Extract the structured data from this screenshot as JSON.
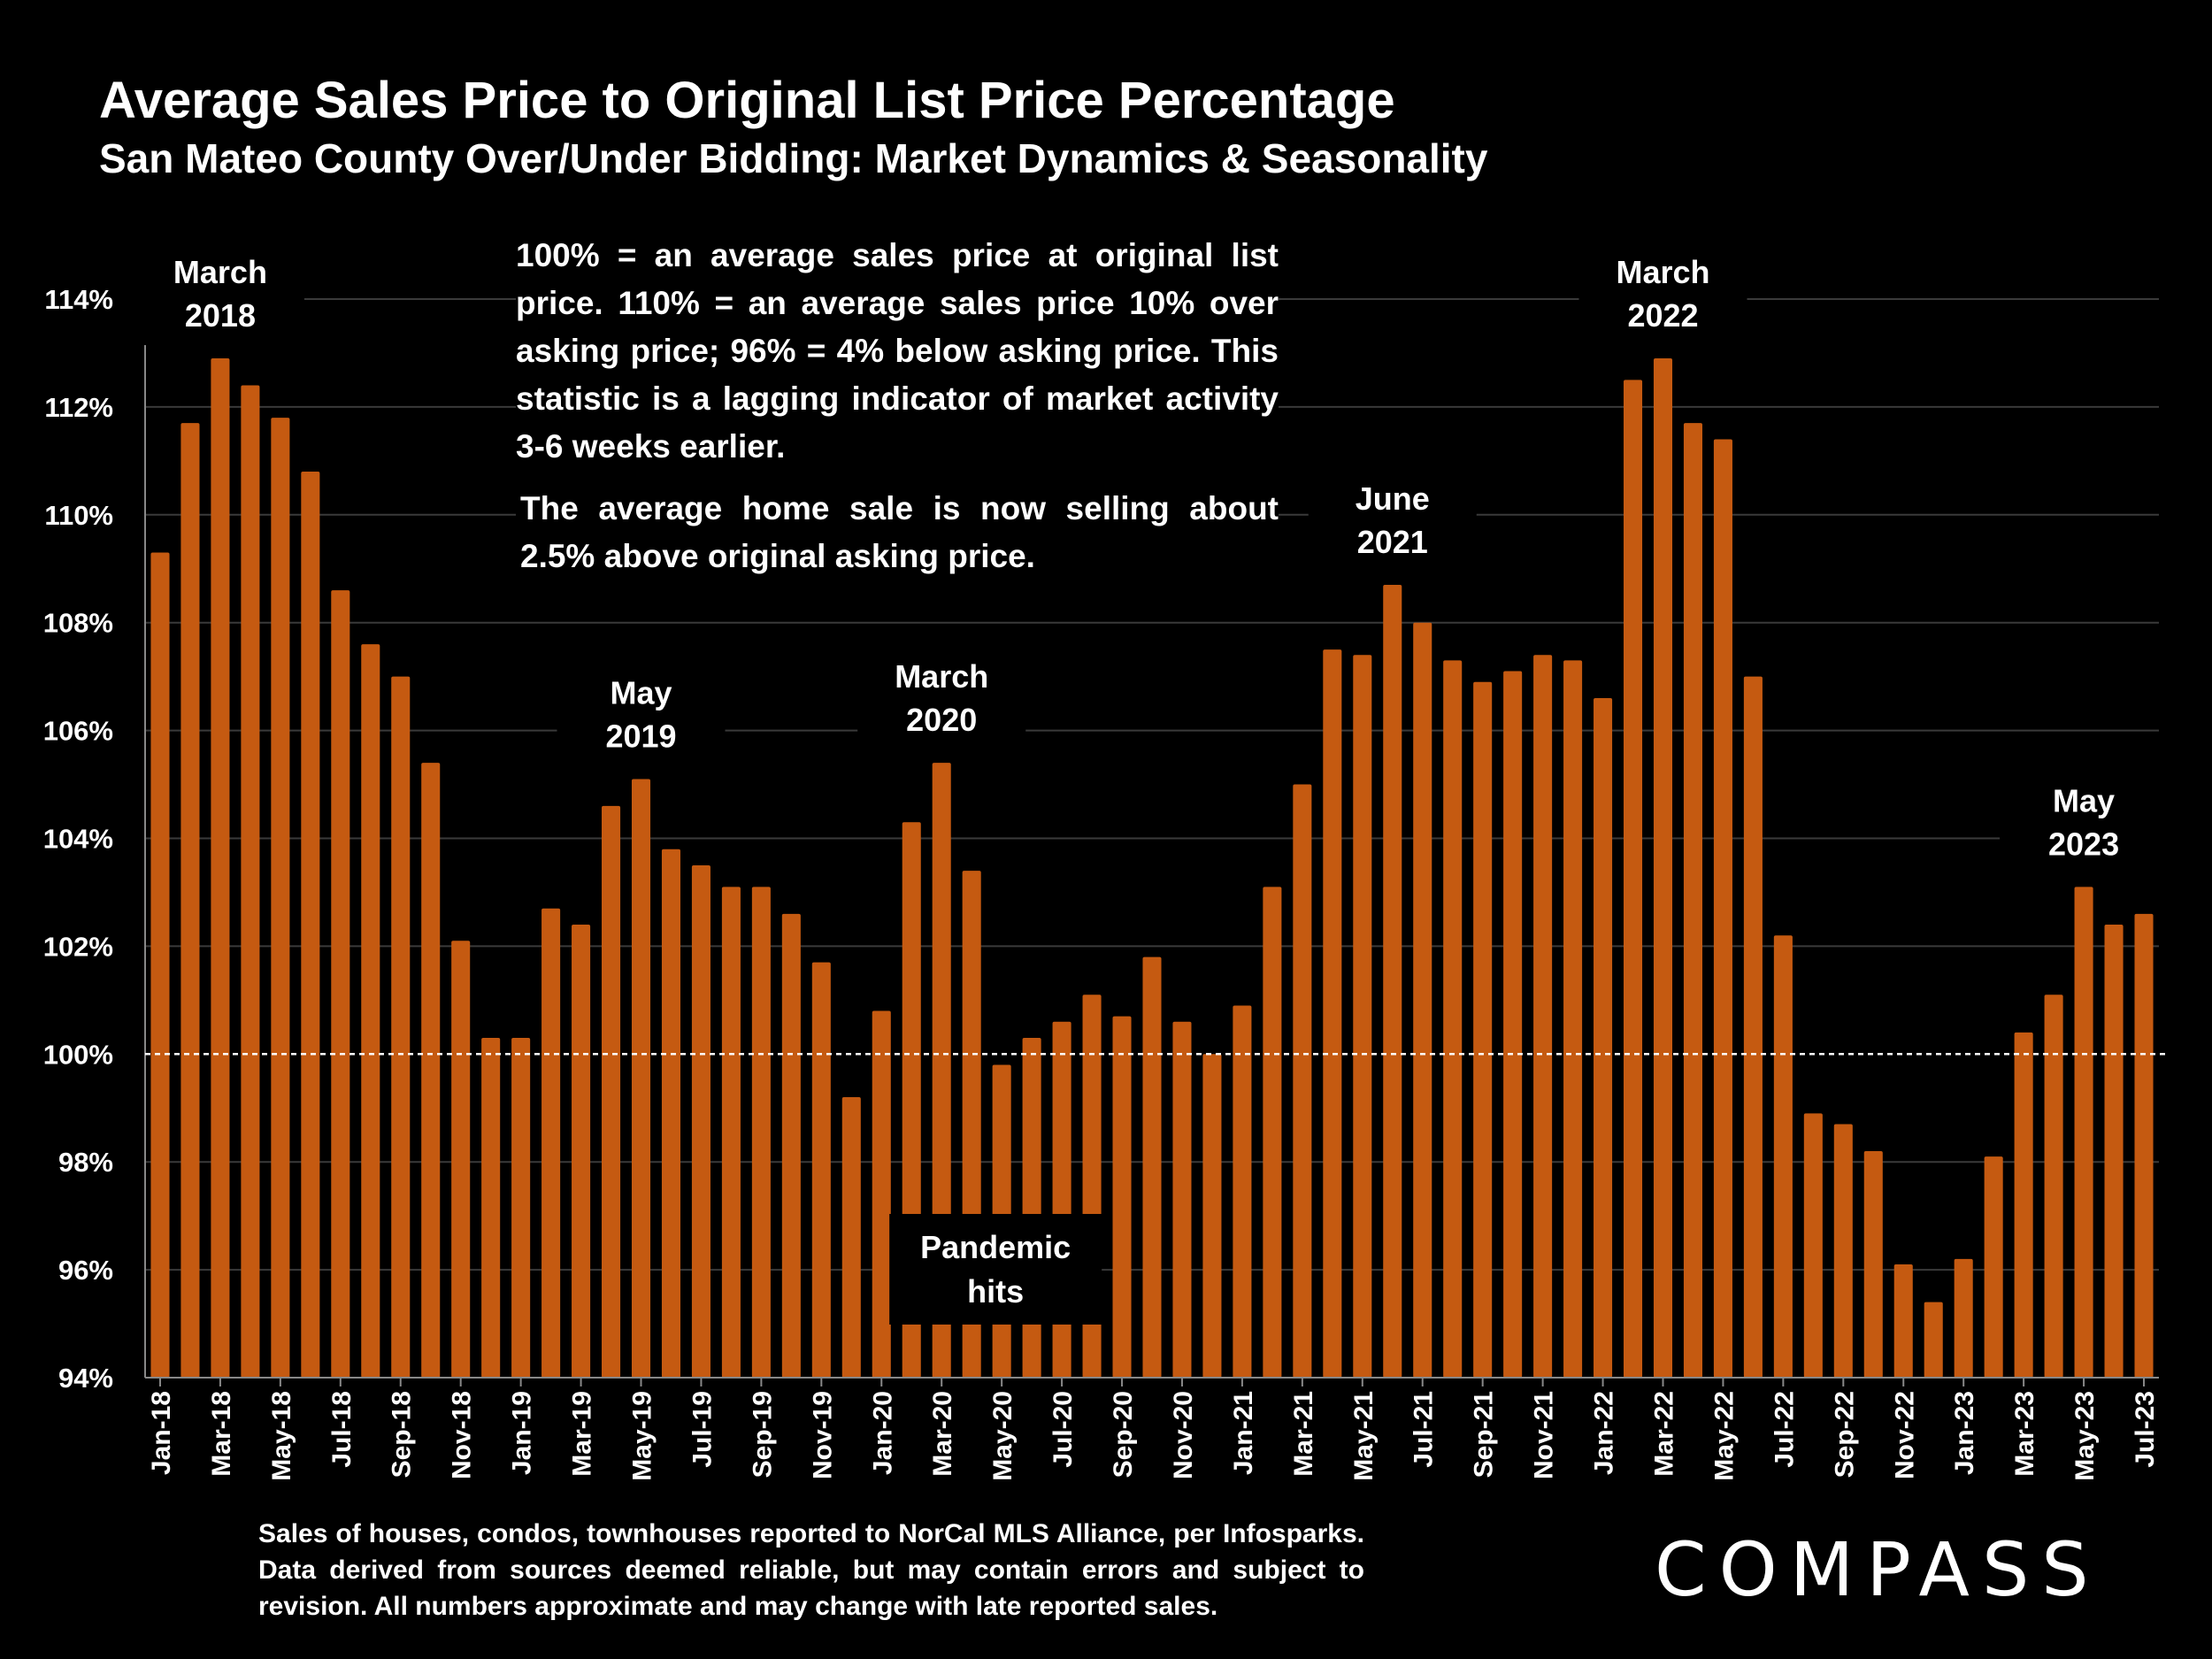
{
  "header": {
    "title": "Average Sales Price to Original List Price Percentage",
    "subtitle": "San Mateo County Over/Under Bidding: Market Dynamics & Seasonality"
  },
  "chart_data": {
    "type": "bar",
    "color": "#C55A11",
    "ylim": [
      94,
      114
    ],
    "y_ticks": [
      "94%",
      "96%",
      "98%",
      "100%",
      "102%",
      "104%",
      "106%",
      "108%",
      "110%",
      "112%",
      "114%"
    ],
    "reference_line": 100,
    "grid": true,
    "categories": [
      "Jan-18",
      "Feb-18",
      "Mar-18",
      "Apr-18",
      "May-18",
      "Jun-18",
      "Jul-18",
      "Aug-18",
      "Sep-18",
      "Oct-18",
      "Nov-18",
      "Dec-18",
      "Jan-19",
      "Feb-19",
      "Mar-19",
      "Apr-19",
      "May-19",
      "Jun-19",
      "Jul-19",
      "Aug-19",
      "Sep-19",
      "Oct-19",
      "Nov-19",
      "Dec-19",
      "Jan-20",
      "Feb-20",
      "Mar-20",
      "Apr-20",
      "May-20",
      "Jun-20",
      "Jul-20",
      "Aug-20",
      "Sep-20",
      "Oct-20",
      "Nov-20",
      "Dec-20",
      "Jan-21",
      "Feb-21",
      "Mar-21",
      "Apr-21",
      "May-21",
      "Jun-21",
      "Jul-21",
      "Aug-21",
      "Sep-21",
      "Oct-21",
      "Nov-21",
      "Dec-21",
      "Jan-22",
      "Feb-22",
      "Mar-22",
      "Apr-22",
      "May-22",
      "Jun-22",
      "Jul-22",
      "Aug-22",
      "Sep-22",
      "Oct-22",
      "Nov-22",
      "Dec-22",
      "Jan-23",
      "Feb-23",
      "Mar-23",
      "Apr-23",
      "May-23",
      "Jun-23",
      "Jul-23"
    ],
    "x_tick_labels": [
      "Jan-18",
      "Mar-18",
      "May-18",
      "Jul-18",
      "Sep-18",
      "Nov-18",
      "Jan-19",
      "Mar-19",
      "May-19",
      "Jul-19",
      "Sep-19",
      "Nov-19",
      "Jan-20",
      "Mar-20",
      "May-20",
      "Jul-20",
      "Sep-20",
      "Nov-20",
      "Jan-21",
      "Mar-21",
      "May-21",
      "Jul-21",
      "Sep-21",
      "Nov-21",
      "Jan-22",
      "Mar-22",
      "May-22",
      "Jul-22",
      "Sep-22",
      "Nov-22",
      "Jan-23",
      "Mar-23",
      "May-23",
      "Jul-23"
    ],
    "values": [
      109.3,
      111.7,
      112.9,
      112.4,
      111.8,
      110.8,
      108.6,
      107.6,
      107.0,
      105.4,
      102.1,
      100.3,
      100.3,
      102.7,
      102.4,
      104.6,
      105.1,
      103.8,
      103.5,
      103.1,
      103.1,
      102.6,
      101.7,
      99.2,
      100.8,
      104.3,
      105.4,
      103.4,
      99.8,
      100.3,
      100.6,
      101.1,
      100.7,
      101.8,
      100.6,
      100.0,
      100.9,
      103.1,
      105.0,
      107.5,
      107.4,
      108.7,
      108.0,
      107.3,
      106.9,
      107.1,
      107.4,
      107.3,
      106.6,
      112.5,
      112.9,
      111.7,
      111.4,
      107.0,
      102.2,
      98.9,
      98.7,
      98.2,
      96.1,
      95.4,
      96.2,
      98.1,
      100.4,
      101.1,
      103.1,
      102.4,
      102.6
    ],
    "annotations": [
      {
        "label": [
          "March",
          "2018"
        ],
        "category": "Mar-18"
      },
      {
        "label": [
          "May",
          "2019"
        ],
        "category": "May-19"
      },
      {
        "label": [
          "March",
          "2020"
        ],
        "category": "Mar-20"
      },
      {
        "label": [
          "June",
          "2021"
        ],
        "category": "Jun-21"
      },
      {
        "label": [
          "March",
          "2022"
        ],
        "category": "Mar-22"
      },
      {
        "label": [
          "May",
          "2023"
        ],
        "category": "May-23"
      }
    ],
    "callout": [
      "Pandemic",
      "hits"
    ]
  },
  "note": {
    "p1": "100% = an average sales price at original list price. 110% = an average sales price 10% over asking price; 96% = 4% below asking price. This statistic is a lagging indicator of market activity 3-6 weeks earlier.",
    "p2": "The average home sale is now selling about 2.5% above original asking price."
  },
  "footnote": "Sales of houses, condos, townhouses reported to NorCal MLS Alliance, per Infosparks. Data derived from sources deemed reliable, but may contain errors and subject to revision. All numbers approximate and may change with late reported sales.",
  "logo": "COMPASS"
}
